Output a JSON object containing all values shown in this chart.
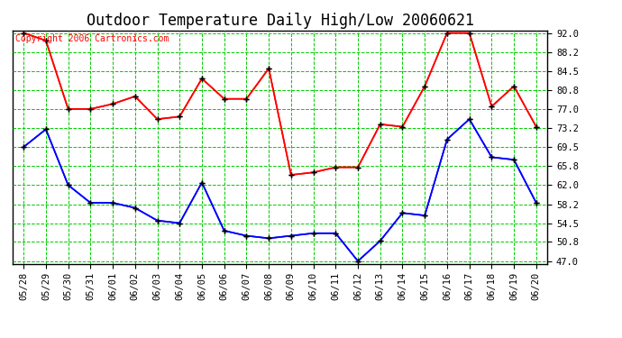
{
  "title": "Outdoor Temperature Daily High/Low 20060621",
  "copyright": "Copyright 2006 Cartronics.com",
  "dates": [
    "05/28",
    "05/29",
    "05/30",
    "05/31",
    "06/01",
    "06/02",
    "06/03",
    "06/04",
    "06/05",
    "06/06",
    "06/07",
    "06/08",
    "06/09",
    "06/10",
    "06/11",
    "06/12",
    "06/13",
    "06/14",
    "06/15",
    "06/16",
    "06/17",
    "06/18",
    "06/19",
    "06/20"
  ],
  "high_temps": [
    92.0,
    90.5,
    77.0,
    77.0,
    78.0,
    79.5,
    75.0,
    75.5,
    83.0,
    79.0,
    79.0,
    85.0,
    64.0,
    64.5,
    65.5,
    65.5,
    74.0,
    73.5,
    81.5,
    92.0,
    92.0,
    77.5,
    81.5,
    73.5
  ],
  "low_temps": [
    69.5,
    73.0,
    62.0,
    58.5,
    58.5,
    57.5,
    55.0,
    54.5,
    62.5,
    53.0,
    52.0,
    51.5,
    52.0,
    52.5,
    52.5,
    47.0,
    51.0,
    56.5,
    56.0,
    71.0,
    75.0,
    67.5,
    67.0,
    58.5
  ],
  "high_color": "#ff0000",
  "low_color": "#0000ff",
  "marker": "+",
  "marker_color": "#000000",
  "fig_bg_color": "#ffffff",
  "plot_bg_color": "#ffffff",
  "grid_color": "#00cc00",
  "border_color": "#000000",
  "title_color": "#000000",
  "copyright_color": "#ff0000",
  "y_min": 47.0,
  "y_max": 92.0,
  "y_ticks": [
    47.0,
    50.8,
    54.5,
    58.2,
    62.0,
    65.8,
    69.5,
    73.2,
    77.0,
    80.8,
    84.5,
    88.2,
    92.0
  ],
  "title_fontsize": 12,
  "tick_fontsize": 7.5,
  "copyright_fontsize": 7,
  "line_width": 1.2,
  "marker_size": 5
}
